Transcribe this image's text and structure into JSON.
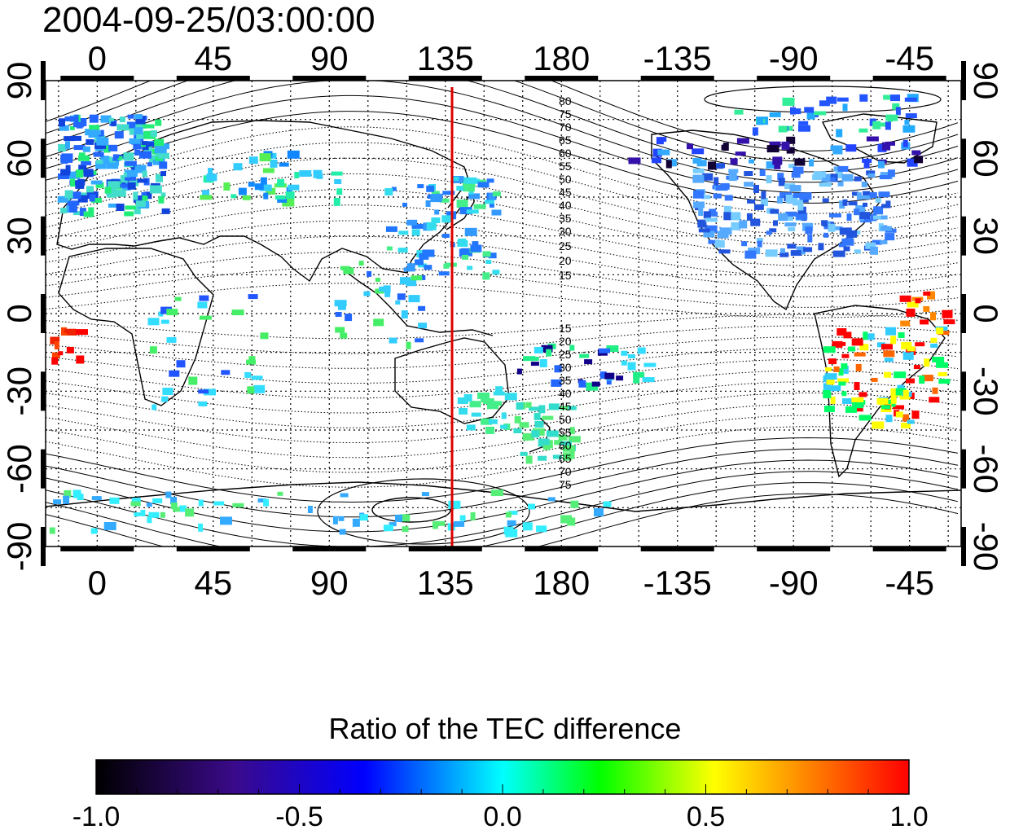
{
  "timestamp": "2004-09-25/03:00:00",
  "map": {
    "lon_ticks": [
      {
        "lon": 0,
        "label": "0"
      },
      {
        "lon": 45,
        "label": "45"
      },
      {
        "lon": 90,
        "label": "90"
      },
      {
        "lon": 135,
        "label": "135"
      },
      {
        "lon": 180,
        "label": "180"
      },
      {
        "lon": 225,
        "label": "-135"
      },
      {
        "lon": 270,
        "label": "-90"
      },
      {
        "lon": 315,
        "label": "-45"
      }
    ],
    "lat_ticks": [
      {
        "lat": 90,
        "label": "90"
      },
      {
        "lat": 60,
        "label": "60"
      },
      {
        "lat": 30,
        "label": "30"
      },
      {
        "lat": 0,
        "label": "0"
      },
      {
        "lat": -30,
        "label": "-30"
      },
      {
        "lat": -60,
        "label": "-60"
      },
      {
        "lat": -90,
        "label": "-90"
      }
    ],
    "lon_range": [
      -20,
      335
    ],
    "lat_range": [
      -90,
      90
    ],
    "grid": "dotted, 15° spacing",
    "reference_meridian_lon": 135,
    "reference_meridian_color": "#dd0000",
    "contour_labels_north": [
      "80",
      "75",
      "70",
      "65",
      "60",
      "55",
      "50",
      "45",
      "40",
      "35",
      "30",
      "25",
      "20",
      "15"
    ],
    "contour_labels_south": [
      "15",
      "20",
      "25",
      "30",
      "35",
      "40",
      "45",
      "50",
      "55",
      "60",
      "65",
      "70",
      "75"
    ]
  },
  "colorbar": {
    "title": "Ratio of the TEC difference",
    "min": -1.0,
    "max": 1.0,
    "tick_labels": [
      "-1.0",
      "-0.5",
      "0.0",
      "0.5",
      "1.0"
    ],
    "colors": [
      "#000000",
      "#3a0a8a",
      "#0000ff",
      "#00ffff",
      "#00ff00",
      "#ffff00",
      "#ff0000"
    ]
  }
}
